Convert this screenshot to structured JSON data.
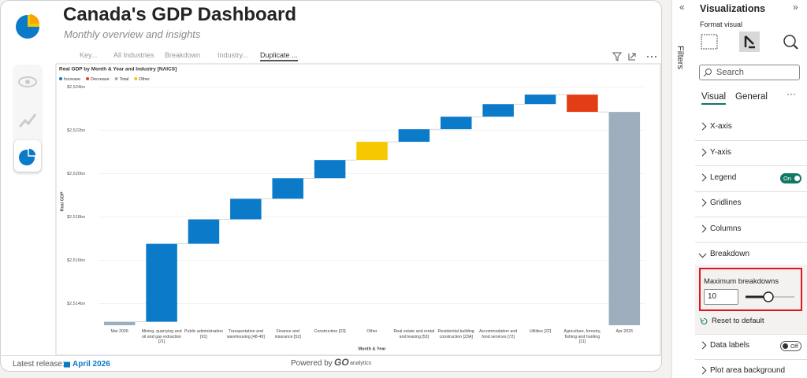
{
  "header": {
    "title": "Canada's GDP Dashboard",
    "subtitle": "Monthly overview and insights"
  },
  "tabs": [
    "Key...",
    "All Industries",
    "Breakdown",
    "Industry...",
    "Duplicate ..."
  ],
  "footer": {
    "release_label": "Latest release:",
    "release_date": "April 2026",
    "powered_by": "Powered by",
    "brand": "GO",
    "brand_suffix": "analytics"
  },
  "filters_pane": {
    "title": "Filters"
  },
  "visualizations_pane": {
    "title": "Visualizations",
    "subtitle": "Format visual",
    "search_placeholder": "Search",
    "tabs": [
      "Visual",
      "General"
    ],
    "sections": [
      "X-axis",
      "Y-axis",
      "Legend",
      "Gridlines",
      "Columns",
      "Breakdown",
      "Data labels",
      "Plot area background"
    ],
    "legend_toggle": "On",
    "data_labels_toggle": "Off",
    "breakdown": {
      "label": "Maximum breakdowns",
      "value": "10",
      "reset": "Reset to default"
    }
  },
  "chart_data": {
    "type": "waterfall",
    "title": "Real GDP by Month & Year and Industry [NAICS]",
    "x_label": "Month & Year",
    "y_label": "Real GDP",
    "legend": [
      {
        "name": "Increase",
        "color": "#0b7ac8"
      },
      {
        "name": "Decrease",
        "color": "#e23d15"
      },
      {
        "name": "Total",
        "color": "#9eaebc"
      },
      {
        "name": "Other",
        "color": "#f5c800"
      }
    ],
    "categories": [
      "Mar 2026",
      "Mining, quarrying and oil and gas extraction [21]",
      "Public administration [91]",
      "Transportation and warehousing [48-49]",
      "Finance and insurance [52]",
      "Construction [23]",
      "Other",
      "Real estate and rental and leasing [53]",
      "Residential building construction [23A]",
      "Accommodation and food services [72]",
      "Utilities [22]",
      "Agriculture, forestry, fishing and hunting [11]",
      "Apr 2026"
    ],
    "values": [
      2513.16,
      3.6,
      1.13,
      0.95,
      0.95,
      0.84,
      0.84,
      0.58,
      0.58,
      0.58,
      0.44,
      -0.8,
      2522.85
    ],
    "measure": [
      "absolute",
      "relative",
      "relative",
      "relative",
      "relative",
      "relative",
      "relative",
      "relative",
      "relative",
      "relative",
      "relative",
      "relative",
      "absolute"
    ],
    "bar_colors": [
      "#9eaebc",
      "#0b7ac8",
      "#0b7ac8",
      "#0b7ac8",
      "#0b7ac8",
      "#0b7ac8",
      "#f5c800",
      "#0b7ac8",
      "#0b7ac8",
      "#0b7ac8",
      "#0b7ac8",
      "#e23d15",
      "#9eaebc"
    ],
    "ylim": [
      2513,
      2524.2
    ],
    "yticks": [
      {
        "value": 2514,
        "label": "$2,514bn"
      },
      {
        "value": 2516,
        "label": "$2,516bn"
      },
      {
        "value": 2518,
        "label": "$2,518bn"
      },
      {
        "value": 2520,
        "label": "$2,520bn"
      },
      {
        "value": 2522,
        "label": "$2,522bn"
      },
      {
        "value": 2524,
        "label": "$2,524bn"
      }
    ],
    "grid": true
  }
}
